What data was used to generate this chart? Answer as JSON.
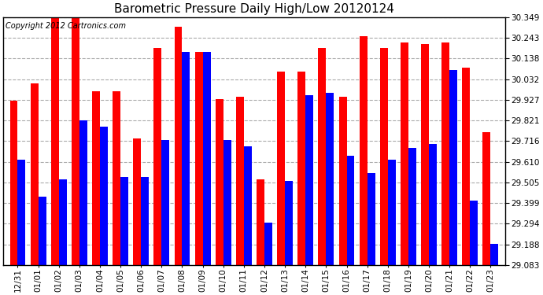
{
  "title": "Barometric Pressure Daily High/Low 20120124",
  "copyright": "Copyright 2012 Cartronics.com",
  "categories": [
    "12/31",
    "01/01",
    "01/02",
    "01/03",
    "01/04",
    "01/05",
    "01/06",
    "01/07",
    "01/08",
    "01/09",
    "01/10",
    "01/11",
    "01/12",
    "01/13",
    "01/14",
    "01/15",
    "01/16",
    "01/17",
    "01/18",
    "01/19",
    "01/20",
    "01/21",
    "01/22",
    "01/23"
  ],
  "highs": [
    29.92,
    30.01,
    30.35,
    30.35,
    29.97,
    29.97,
    29.73,
    30.19,
    30.3,
    30.17,
    29.93,
    29.94,
    29.52,
    30.07,
    30.07,
    30.19,
    29.94,
    30.25,
    30.19,
    30.22,
    30.21,
    30.22,
    30.09,
    29.76
  ],
  "lows": [
    29.62,
    29.43,
    29.52,
    29.82,
    29.79,
    29.53,
    29.53,
    29.72,
    30.17,
    30.17,
    29.72,
    29.69,
    29.3,
    29.51,
    29.95,
    29.96,
    29.64,
    29.55,
    29.62,
    29.68,
    29.7,
    30.08,
    29.41,
    29.19
  ],
  "ymin": 29.083,
  "ymax": 30.349,
  "yticks": [
    29.083,
    29.188,
    29.294,
    29.399,
    29.505,
    29.61,
    29.716,
    29.821,
    29.927,
    30.032,
    30.138,
    30.243,
    30.349
  ],
  "bar_color_high": "#ff0000",
  "bar_color_low": "#0000ff",
  "background_color": "#ffffff",
  "grid_color": "#aaaaaa",
  "title_fontsize": 11,
  "copyright_fontsize": 7
}
